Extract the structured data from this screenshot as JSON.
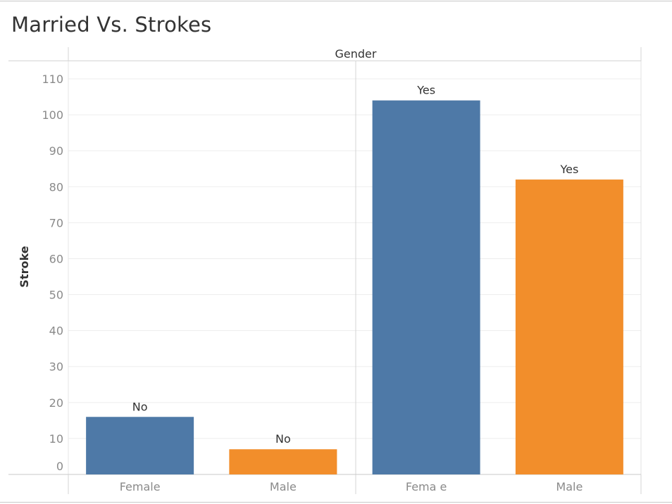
{
  "chart_data": {
    "type": "bar",
    "title": "Married Vs. Strokes",
    "column_header": "Gender",
    "ylabel": "Stroke",
    "ylim": [
      0,
      112
    ],
    "yticks": [
      0,
      10,
      20,
      30,
      40,
      50,
      60,
      70,
      80,
      90,
      100,
      110
    ],
    "grid": true,
    "panes": [
      {
        "name": "No",
        "bars": [
          {
            "category": "Female",
            "value": 16,
            "label": "No"
          },
          {
            "category": "Male",
            "value": 7,
            "label": "No"
          }
        ]
      },
      {
        "name": "Yes",
        "bars": [
          {
            "category": "Fema e",
            "value": 104,
            "label": "Yes"
          },
          {
            "category": "Male",
            "value": 82,
            "label": "Yes"
          }
        ]
      }
    ],
    "colors": {
      "Female": "#4e79a7",
      "Male": "#f28e2b"
    }
  }
}
